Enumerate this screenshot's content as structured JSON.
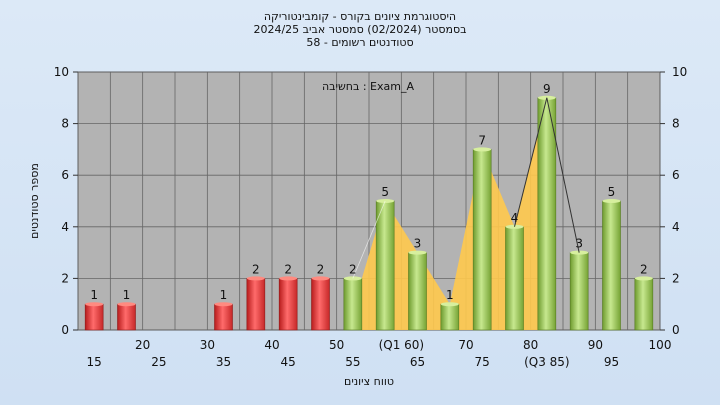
{
  "chart_data": {
    "type": "bar",
    "title_lines": [
      "היסטוגרמת ציונים בקורס - קומבינטוריקה",
      "בסמסטר  (02/2024)  סמסטר אביב 2024/25",
      "סטודנטים רשומים - 58"
    ],
    "annotation": "בחשיבה : Exam_A",
    "xlabel": "טווח ציונים",
    "ylabel": "מספר סטודנטים",
    "ylim": [
      0,
      10
    ],
    "yticks": [
      0,
      2,
      4,
      6,
      8,
      10
    ],
    "grid": true,
    "categories": [
      15,
      20,
      25,
      30,
      35,
      40,
      45,
      50,
      55,
      60,
      65,
      70,
      75,
      80,
      85,
      90,
      95,
      100
    ],
    "category_labels": [
      "15",
      "20",
      "25",
      "30",
      "35",
      "40",
      "45",
      "50",
      "55",
      "(Q1 60)",
      "65",
      "70",
      "75",
      "80",
      "(Q3 85)",
      "90",
      "95",
      "100"
    ],
    "values": [
      1,
      1,
      0,
      0,
      1,
      2,
      2,
      2,
      2,
      5,
      3,
      1,
      7,
      4,
      9,
      3,
      5,
      2
    ],
    "bar_colors": [
      "#e53935",
      "#e53935",
      "#e53935",
      "#e53935",
      "#e53935",
      "#e53935",
      "#e53935",
      "#e53935",
      "#8bc34a",
      "#8bc34a",
      "#8bc34a",
      "#8bc34a",
      "#8bc34a",
      "#8bc34a",
      "#8bc34a",
      "#8bc34a",
      "#8bc34a",
      "#8bc34a"
    ],
    "area_color": "#ffc94d",
    "plot_background": "#b3b3b3"
  }
}
